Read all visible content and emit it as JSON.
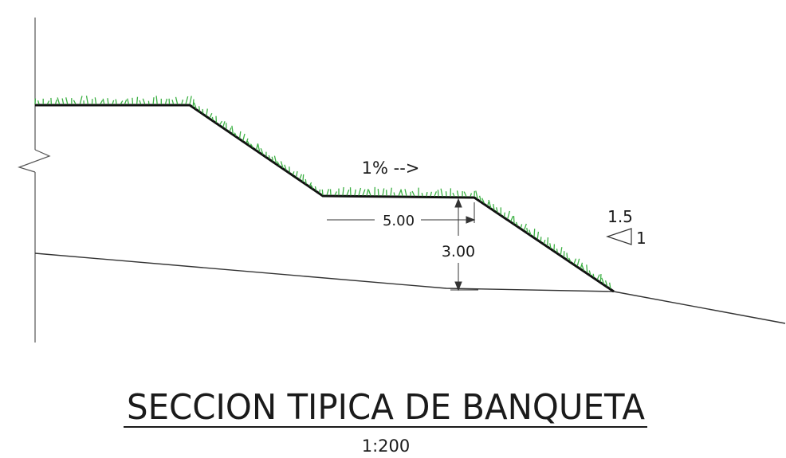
{
  "drawing": {
    "title": "SECCION TIPICA DE BANQUETA",
    "scale": "1:200",
    "slope_grade": "1% -->",
    "bench_width": "5.00",
    "bench_height": "3.00",
    "slope_ratio_vertical": "1.5",
    "slope_ratio_horizontal": "1",
    "colors": {
      "line": "#1a1a1a",
      "grass": "#3cb043",
      "background": "#ffffff"
    }
  }
}
